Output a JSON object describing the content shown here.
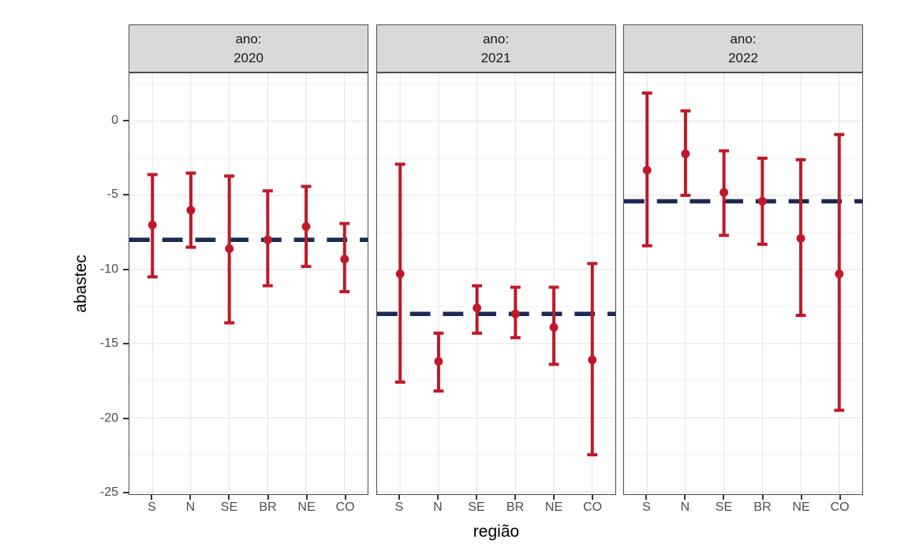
{
  "chart_data": {
    "type": "errorbar",
    "title": "",
    "xlabel": "região",
    "ylabel": "abastec",
    "categories": [
      "S",
      "N",
      "SE",
      "BR",
      "NE",
      "CO"
    ],
    "y_ticks": [
      0,
      -5,
      -10,
      -15,
      -20,
      -25
    ],
    "y_minor_ticks": [
      2.5,
      -2.5,
      -7.5,
      -12.5,
      -17.5,
      -22.5
    ],
    "y_domain": [
      3.2,
      -25.2
    ],
    "grid": "major-and-minor-horizontal, major-vertical-at-categories",
    "legend_position": "none",
    "facet_variable": "ano",
    "colors": {
      "point": "#c01828",
      "errorbar": "#c01828",
      "reference_line": "#1b2a55",
      "strip_background": "#d9d9d9",
      "panel_border": "#4d4d4d",
      "grid_major": "#e3e3e3",
      "grid_minor": "#f1f1f1",
      "axis_text": "#4d4d4d",
      "title_text": "#000000"
    },
    "facets": [
      {
        "strip": {
          "prefix": "ano:",
          "year": "2020"
        },
        "reference_line": -8.0,
        "series": [
          {
            "category": "S",
            "estimate": -7.0,
            "lower": -10.5,
            "upper": -3.6
          },
          {
            "category": "N",
            "estimate": -6.0,
            "lower": -8.5,
            "upper": -3.5
          },
          {
            "category": "SE",
            "estimate": -8.6,
            "lower": -13.6,
            "upper": -3.7
          },
          {
            "category": "BR",
            "estimate": -8.0,
            "lower": -11.1,
            "upper": -4.7
          },
          {
            "category": "NE",
            "estimate": -7.1,
            "lower": -9.8,
            "upper": -4.4
          },
          {
            "category": "CO",
            "estimate": -9.3,
            "lower": -11.5,
            "upper": -6.9
          }
        ]
      },
      {
        "strip": {
          "prefix": "ano:",
          "year": "2021"
        },
        "reference_line": -13.0,
        "series": [
          {
            "category": "S",
            "estimate": -10.3,
            "lower": -17.6,
            "upper": -2.9
          },
          {
            "category": "N",
            "estimate": -16.2,
            "lower": -18.2,
            "upper": -14.3
          },
          {
            "category": "SE",
            "estimate": -12.6,
            "lower": -14.3,
            "upper": -11.1
          },
          {
            "category": "BR",
            "estimate": -13.0,
            "lower": -14.6,
            "upper": -11.2
          },
          {
            "category": "NE",
            "estimate": -13.9,
            "lower": -16.4,
            "upper": -11.2
          },
          {
            "category": "CO",
            "estimate": -16.1,
            "lower": -22.5,
            "upper": -9.6
          }
        ]
      },
      {
        "strip": {
          "prefix": "ano:",
          "year": "2022"
        },
        "reference_line": -5.4,
        "series": [
          {
            "category": "S",
            "estimate": -3.3,
            "lower": -8.4,
            "upper": 1.9
          },
          {
            "category": "N",
            "estimate": -2.2,
            "lower": -5.0,
            "upper": 0.7
          },
          {
            "category": "SE",
            "estimate": -4.8,
            "lower": -7.7,
            "upper": -2.0
          },
          {
            "category": "BR",
            "estimate": -5.4,
            "lower": -8.3,
            "upper": -2.5
          },
          {
            "category": "NE",
            "estimate": -7.9,
            "lower": -13.1,
            "upper": -2.6
          },
          {
            "category": "CO",
            "estimate": -10.3,
            "lower": -19.5,
            "upper": -0.9
          }
        ]
      }
    ]
  }
}
